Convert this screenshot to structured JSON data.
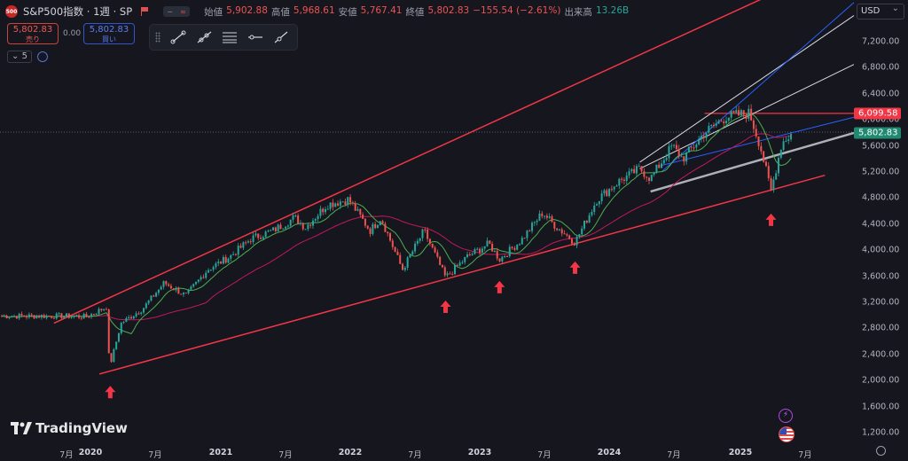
{
  "header": {
    "logo_text": "500",
    "symbol": "S&P500指数 · 1週 · SP",
    "open_label": "始値",
    "open": "5,902.88",
    "high_label": "高値",
    "high": "5,968.61",
    "low_label": "安値",
    "low": "5,767.41",
    "close_label": "終値",
    "close": "5,802.83",
    "change": "−155.54 (−2.61%)",
    "volume_label": "出来高",
    "volume": "13.26B"
  },
  "trade": {
    "sell_price": "5,802.83",
    "sell_label": "売り",
    "spread": "0.00",
    "buy_price": "5,802.83",
    "buy_label": "買い"
  },
  "indicators": {
    "chip": "5"
  },
  "price_axis": {
    "currency": "USD",
    "ticks": [
      "7,200.00",
      "6,800.00",
      "6,400.00",
      "6,000.00",
      "5,600.00",
      "5,200.00",
      "4,800.00",
      "4,400.00",
      "4,000.00",
      "3,600.00",
      "3,200.00",
      "2,800.00",
      "2,400.00",
      "2,000.00",
      "1,600.00",
      "1,200.00"
    ],
    "resistance_label": "6,099.58",
    "last_label": "5,802.83"
  },
  "time_axis": {
    "labels": [
      "7月",
      "2020",
      "7月",
      "2021",
      "7月",
      "2022",
      "7月",
      "2023",
      "7月",
      "2024",
      "7月",
      "2025",
      "7月"
    ],
    "year_flags": [
      false,
      true,
      false,
      true,
      false,
      true,
      false,
      true,
      false,
      true,
      false,
      true,
      false
    ]
  },
  "branding": {
    "name": "TradingView"
  },
  "colors": {
    "up": "#26a69a",
    "down": "#ef5350",
    "channel": "#f23645",
    "ma_short": "#4caf50",
    "ma_long": "#c2185b",
    "blue_line": "#2962ff"
  },
  "chart_data": {
    "type": "candlestick",
    "interval": "weekly",
    "x_range": [
      "2019-06",
      "2025-09"
    ],
    "y_range": [
      1200,
      7200
    ],
    "last_close": 5802.83,
    "resistance_level": 6099.58,
    "close_series": [
      {
        "t": "2019-07",
        "v": 2990
      },
      {
        "t": "2019-09",
        "v": 2980
      },
      {
        "t": "2019-11",
        "v": 3140
      },
      {
        "t": "2020-01",
        "v": 3290
      },
      {
        "t": "2020-02",
        "v": 3380
      },
      {
        "t": "2020-03",
        "v": 2240
      },
      {
        "t": "2020-04",
        "v": 2880
      },
      {
        "t": "2020-06",
        "v": 3100
      },
      {
        "t": "2020-08",
        "v": 3500
      },
      {
        "t": "2020-10",
        "v": 3300
      },
      {
        "t": "2020-12",
        "v": 3700
      },
      {
        "t": "2021-02",
        "v": 3900
      },
      {
        "t": "2021-04",
        "v": 4180
      },
      {
        "t": "2021-06",
        "v": 4300
      },
      {
        "t": "2021-08",
        "v": 4500
      },
      {
        "t": "2021-09",
        "v": 4350
      },
      {
        "t": "2021-11",
        "v": 4700
      },
      {
        "t": "2022-01",
        "v": 4780
      },
      {
        "t": "2022-03",
        "v": 4300
      },
      {
        "t": "2022-04",
        "v": 4500
      },
      {
        "t": "2022-06",
        "v": 3700
      },
      {
        "t": "2022-08",
        "v": 4300
      },
      {
        "t": "2022-10",
        "v": 3580
      },
      {
        "t": "2022-12",
        "v": 3900
      },
      {
        "t": "2023-02",
        "v": 4100
      },
      {
        "t": "2023-03",
        "v": 3860
      },
      {
        "t": "2023-05",
        "v": 4150
      },
      {
        "t": "2023-07",
        "v": 4580
      },
      {
        "t": "2023-08",
        "v": 4400
      },
      {
        "t": "2023-10",
        "v": 4120
      },
      {
        "t": "2023-12",
        "v": 4770
      },
      {
        "t": "2024-02",
        "v": 5050
      },
      {
        "t": "2024-04",
        "v": 5250
      },
      {
        "t": "2024-05",
        "v": 5100
      },
      {
        "t": "2024-07",
        "v": 5600
      },
      {
        "t": "2024-08",
        "v": 5400
      },
      {
        "t": "2024-10",
        "v": 5800
      },
      {
        "t": "2024-12",
        "v": 6050
      },
      {
        "t": "2025-02",
        "v": 6100
      },
      {
        "t": "2025-03",
        "v": 5600
      },
      {
        "t": "2025-04",
        "v": 4900
      },
      {
        "t": "2025-05",
        "v": 5650
      },
      {
        "t": "2025-06",
        "v": 5802.83
      }
    ],
    "arrow_lows": [
      {
        "t": "2020-03",
        "v": 2190
      },
      {
        "t": "2022-10",
        "v": 3500
      },
      {
        "t": "2023-03",
        "v": 3800
      },
      {
        "t": "2023-10",
        "v": 4100
      },
      {
        "t": "2025-04",
        "v": 4835
      }
    ],
    "trendlines": [
      {
        "kind": "channel-upper",
        "from": {
          "t": "2019-06",
          "v": 2880
        },
        "to": {
          "t": "2025-09",
          "v": 8300
        }
      },
      {
        "kind": "channel-lower",
        "from": {
          "t": "2020-02",
          "v": 2100
        },
        "to": {
          "t": "2025-09",
          "v": 5150
        }
      }
    ]
  }
}
